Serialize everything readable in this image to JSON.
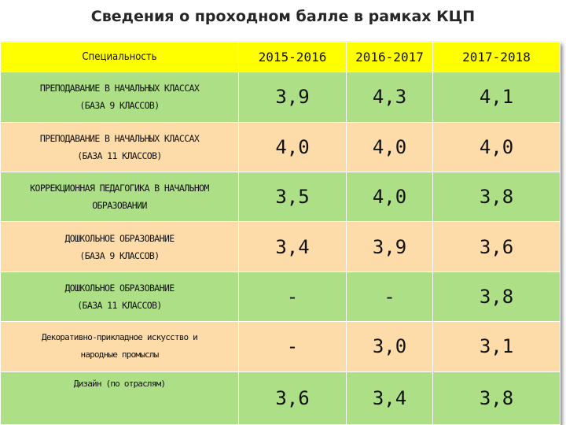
{
  "title": "Сведения о проходном балле в рамках КЦП",
  "header": {
    "specialty": "Специальность",
    "years": [
      "2015-2016",
      "2016-2017",
      "2017-2018"
    ]
  },
  "rows": [
    {
      "line1": "ПРЕПОДАВАНИЕ В НАЧАЛЬНЫХ КЛАССАХ",
      "line2": "(БАЗА 9 КЛАССОВ)",
      "values": [
        "3,9",
        "4,3",
        "4,1"
      ]
    },
    {
      "line1": "ПРЕПОДАВАНИЕ В НАЧАЛЬНЫХ КЛАССАХ",
      "line2": "(БАЗА 11 КЛАССОВ)",
      "values": [
        "4,0",
        "4,0",
        "4,0"
      ]
    },
    {
      "line1": "КОРРЕКЦИОННАЯ ПЕДАГОГИКА В НАЧАЛЬНОМ",
      "line2": "ОБРАЗОВАНИИ",
      "values": [
        "3,5",
        "4,0",
        "3,8"
      ]
    },
    {
      "line1": "ДОШКОЛЬНОЕ ОБРАЗОВАНИЕ",
      "line2": "(БАЗА 9 КЛАССОВ)",
      "values": [
        "3,4",
        "3,9",
        "3,6"
      ]
    },
    {
      "line1": "ДОШКОЛЬНОЕ ОБРАЗОВАНИЕ",
      "line2": "(БАЗА 11 КЛАССОВ)",
      "values": [
        "-",
        "-",
        "3,8"
      ]
    },
    {
      "line1": "Декоративно-прикладное искусство и",
      "line2": "народные промыслы",
      "values": [
        "-",
        "3,0",
        "3,1"
      ]
    },
    {
      "line1": "Дизайн (по отраслям)",
      "line2": "",
      "values": [
        "3,6",
        "3,4",
        "3,8"
      ]
    }
  ],
  "colors": {
    "header": "#ffff00",
    "row_green": "#addf86",
    "row_peach": "#fddcaa"
  }
}
